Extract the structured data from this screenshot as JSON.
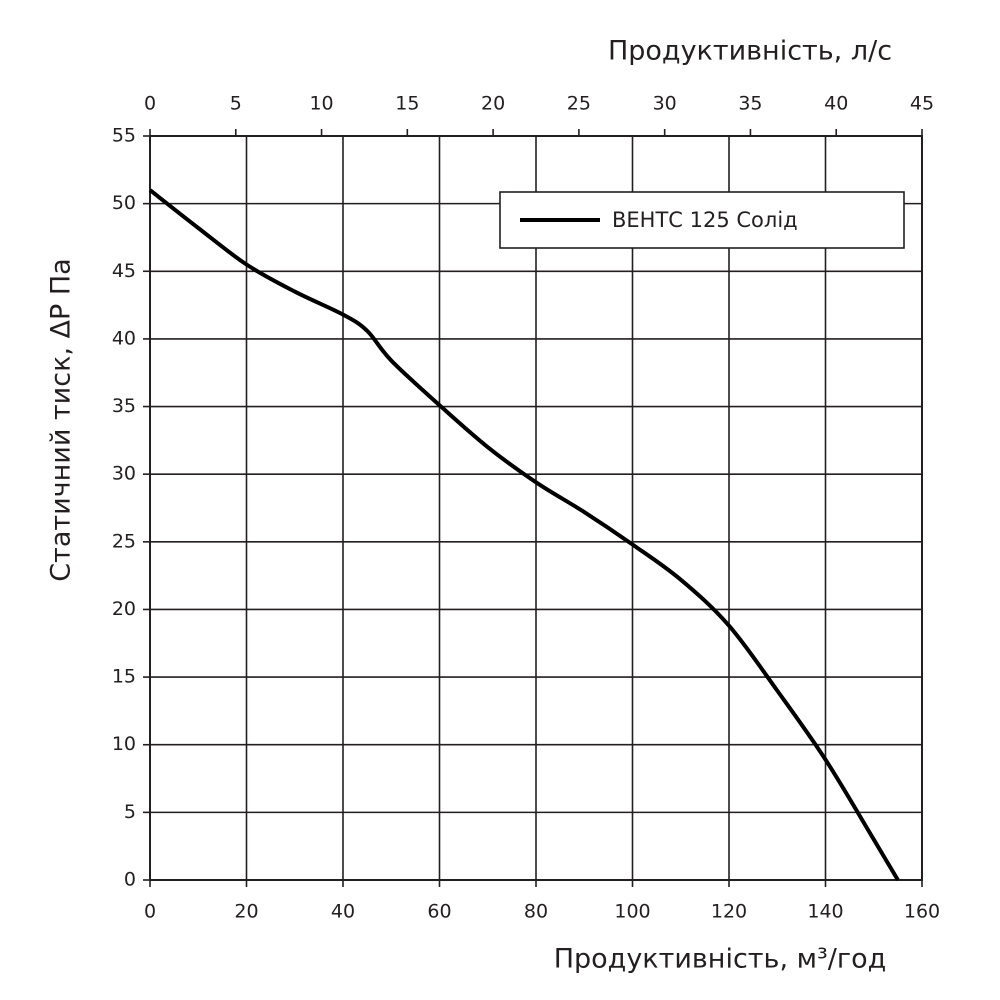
{
  "chart_data": {
    "type": "line",
    "x_label": "Продуктивність, м³/год",
    "x2_label": "Продуктивність, л/с",
    "y_label": "Статичний тиск, ΔP Па",
    "x": [
      0,
      10,
      20,
      30,
      40,
      45,
      50,
      60,
      70,
      80,
      90,
      100,
      110,
      120,
      130,
      140,
      150,
      155
    ],
    "series": [
      {
        "name": "ВЕНТС 125 Солід",
        "color": "#000000",
        "values": [
          51,
          48.2,
          45.5,
          43.5,
          41.8,
          40.6,
          38.4,
          35.1,
          32,
          29.4,
          27.2,
          24.8,
          22.2,
          18.8,
          14,
          8.9,
          3,
          0
        ]
      }
    ],
    "xlim": [
      0,
      160
    ],
    "xticks": [
      0,
      20,
      40,
      60,
      80,
      100,
      120,
      140,
      160
    ],
    "x2lim": [
      0,
      45
    ],
    "x2ticks": [
      0,
      5,
      10,
      15,
      20,
      25,
      30,
      35,
      40,
      45
    ],
    "ylim": [
      0,
      55
    ],
    "yticks": [
      0,
      5,
      10,
      15,
      20,
      25,
      30,
      35,
      40,
      45,
      50,
      55
    ],
    "grid": true,
    "legend": "upper right"
  }
}
